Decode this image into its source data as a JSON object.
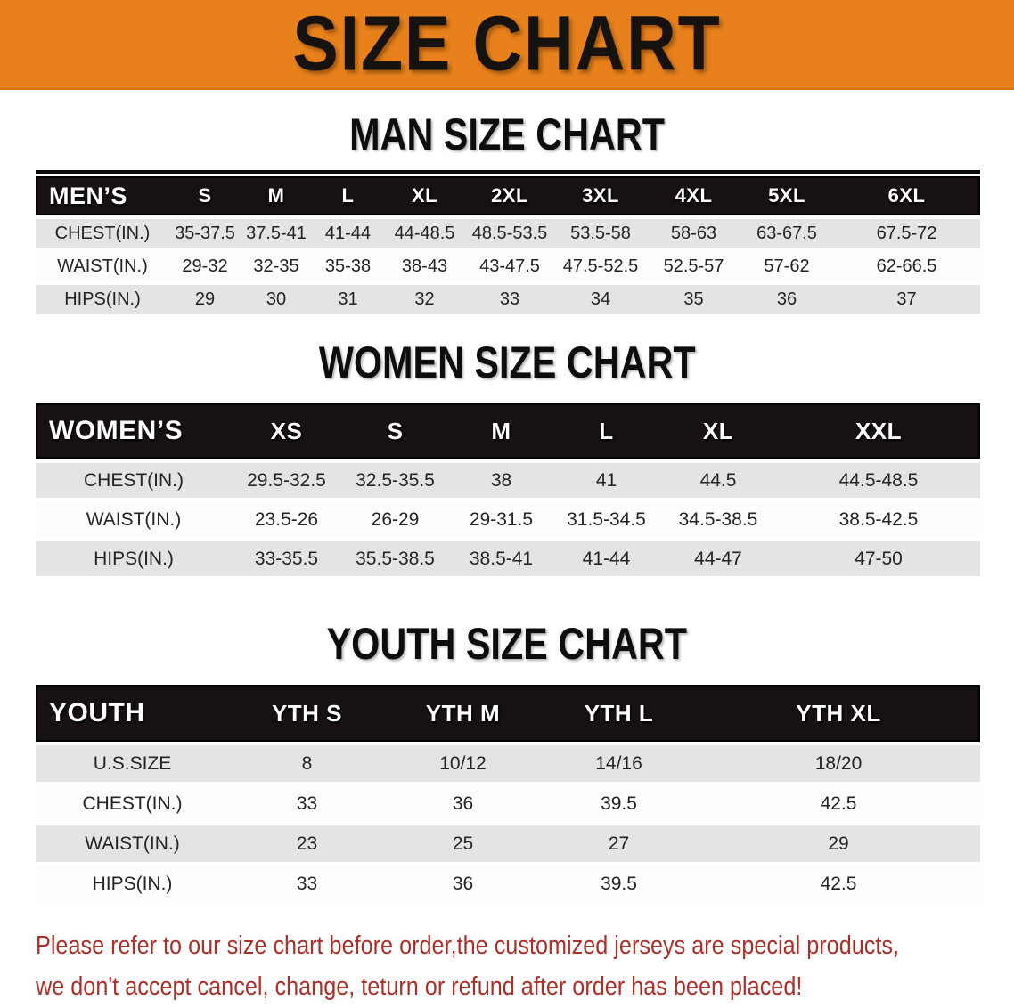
{
  "banner": {
    "title": "SIZE CHART"
  },
  "colors": {
    "banner_orange": "#e8811c",
    "banner_text": "#151210",
    "header_bar_black": "#171111",
    "row_shade_gray": "#e4e4e4",
    "footer_red": "#a93129"
  },
  "sections": {
    "men": {
      "heading": "MAN SIZE CHART",
      "header": [
        "MEN’S",
        "S",
        "M",
        "L",
        "XL",
        "2XL",
        "3XL",
        "4XL",
        "5XL",
        "6XL"
      ],
      "rows": [
        {
          "label": "CHEST(IN.)",
          "values": [
            "35-37.5",
            "37.5-41",
            "41-44",
            "44-48.5",
            "48.5-53.5",
            "53.5-58",
            "58-63",
            "63-67.5",
            "67.5-72"
          ]
        },
        {
          "label": "WAIST(IN.)",
          "values": [
            "29-32",
            "32-35",
            "35-38",
            "38-43",
            "43-47.5",
            "47.5-52.5",
            "52.5-57",
            "57-62",
            "62-66.5"
          ]
        },
        {
          "label": "HIPS(IN.)",
          "values": [
            "29",
            "30",
            "31",
            "32",
            "33",
            "34",
            "35",
            "36",
            "37"
          ]
        }
      ]
    },
    "women": {
      "heading": "WOMEN SIZE CHART",
      "header": [
        "WOMEN’S",
        "XS",
        "S",
        "M",
        "L",
        "XL",
        "XXL"
      ],
      "rows": [
        {
          "label": "CHEST(IN.)",
          "values": [
            "29.5-32.5",
            "32.5-35.5",
            "38",
            "41",
            "44.5",
            "44.5-48.5"
          ]
        },
        {
          "label": "WAIST(IN.)",
          "values": [
            "23.5-26",
            "26-29",
            "29-31.5",
            "31.5-34.5",
            "34.5-38.5",
            "38.5-42.5"
          ]
        },
        {
          "label": "HIPS(IN.)",
          "values": [
            "33-35.5",
            "35.5-38.5",
            "38.5-41",
            "41-44",
            "44-47",
            "47-50"
          ]
        }
      ]
    },
    "youth": {
      "heading": "YOUTH SIZE CHART",
      "header": [
        "YOUTH",
        "YTH S",
        "YTH M",
        "YTH L",
        "YTH XL"
      ],
      "rows": [
        {
          "label": "U.S.SIZE",
          "values": [
            "8",
            "10/12",
            "14/16",
            "18/20"
          ]
        },
        {
          "label": "CHEST(IN.)",
          "values": [
            "33",
            "36",
            "39.5",
            "42.5"
          ]
        },
        {
          "label": "WAIST(IN.)",
          "values": [
            "23",
            "25",
            "27",
            "29"
          ]
        },
        {
          "label": "HIPS(IN.)",
          "values": [
            "33",
            "36",
            "39.5",
            "42.5"
          ]
        }
      ]
    }
  },
  "footer": {
    "line1": "Please refer to our size chart before order,the customized jerseys are special products,",
    "line2": "we don't accept cancel, change, teturn or refund after order has been placed!"
  }
}
